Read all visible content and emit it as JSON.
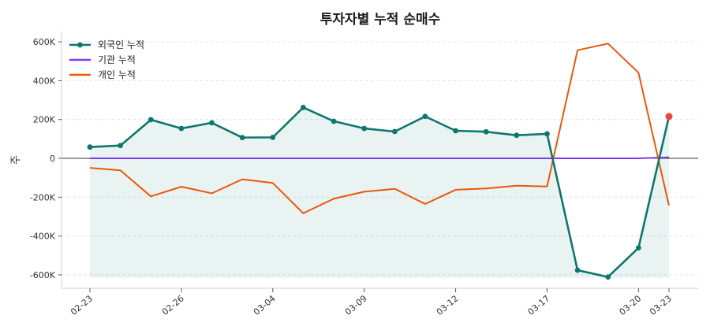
{
  "chart_data": {
    "type": "line",
    "title": "투자자별 누적 순매수",
    "ylabel": "주",
    "xlabel": "",
    "ylim": [
      -660000,
      660000
    ],
    "yticks": [
      -600000,
      -400000,
      -200000,
      0,
      200000,
      400000,
      600000
    ],
    "ytick_labels": [
      "-600K",
      "-400K",
      "-200K",
      "0",
      "200K",
      "400K",
      "600K"
    ],
    "x": [
      "02-23",
      "02-24",
      "02-25",
      "02-26",
      "02-27",
      "03-03",
      "03-04",
      "03-05",
      "03-06",
      "03-09",
      "03-10",
      "03-11",
      "03-12",
      "03-13",
      "03-16",
      "03-17",
      "03-18",
      "03-19",
      "03-20",
      "03-23"
    ],
    "xtick_labels": [
      "02-23",
      "02-26",
      "03-04",
      "03-09",
      "03-12",
      "03-17",
      "03-20",
      "03-23"
    ],
    "grid": "horizontal dashed",
    "legend": "top-left",
    "series": [
      {
        "name": "외국인 누적",
        "color": "#0f766e",
        "markers": true,
        "fill": true,
        "values": [
          58000,
          66000,
          199000,
          154000,
          183000,
          107000,
          108000,
          262000,
          191000,
          154000,
          138000,
          216000,
          142000,
          137000,
          119000,
          126000,
          -576000,
          -611000,
          -461000,
          216000
        ]
      },
      {
        "name": "기관 누적",
        "color": "#7c3aed",
        "markers": false,
        "values": [
          0,
          0,
          0,
          0,
          0,
          0,
          0,
          0,
          0,
          0,
          0,
          0,
          0,
          0,
          0,
          0,
          0,
          0,
          0,
          5000
        ]
      },
      {
        "name": "개인 누적",
        "color": "#ea580c",
        "markers": false,
        "values": [
          -49000,
          -62000,
          -196000,
          -146000,
          -180000,
          -108000,
          -127000,
          -283000,
          -208000,
          -172000,
          -157000,
          -235000,
          -162000,
          -155000,
          -141000,
          -145000,
          557000,
          591000,
          441000,
          -243000
        ]
      }
    ],
    "highlight_last_point_color": "#ef4444"
  }
}
